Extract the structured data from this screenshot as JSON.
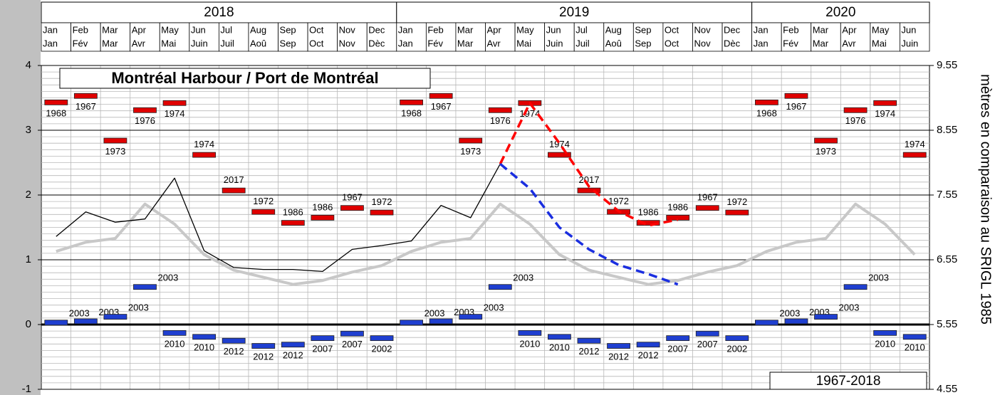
{
  "chart_data": {
    "type": "line",
    "title": "Montréal Harbour / Port de Montréal",
    "y2_label": "mètres en comparaison au SRIGL 1985",
    "period_label": "1967-2018",
    "years": [
      "2018",
      "2019",
      "2020"
    ],
    "categories": [
      "Jan",
      "Feb",
      "Mar",
      "Apr",
      "May",
      "Jun",
      "Jul",
      "Aug",
      "Sep",
      "Oct",
      "Nov",
      "Dec",
      "Jan",
      "Feb",
      "Mar",
      "Apr",
      "May",
      "Jun",
      "Jul",
      "Aug",
      "Sep",
      "Oct",
      "Nov",
      "Dec",
      "Jan",
      "Feb",
      "Mar",
      "Apr",
      "May",
      "Jun"
    ],
    "categories_fr": [
      "Jan",
      "Fév",
      "Mar",
      "Avr",
      "Mai",
      "Juin",
      "Juil",
      "Aoû",
      "Sep",
      "Oct",
      "Nov",
      "Dèc",
      "Jan",
      "Fév",
      "Mar",
      "Avr",
      "Mai",
      "Juin",
      "Juil",
      "Aoû",
      "Sep",
      "Oct",
      "Nov",
      "Dèc",
      "Jan",
      "Fév",
      "Mar",
      "Avr",
      "Mai",
      "Juin"
    ],
    "ylim": [
      -1,
      4
    ],
    "yticks": [
      -1,
      0,
      1,
      2,
      3,
      4
    ],
    "y2lim": [
      4.55,
      9.55
    ],
    "y2ticks": [
      4.55,
      5.55,
      6.55,
      7.55,
      8.55,
      9.55
    ],
    "grid": true,
    "series": [
      {
        "style": "marker",
        "color": "#e00000",
        "values": [
          3.43,
          3.53,
          2.84,
          3.31,
          3.42,
          2.62,
          2.07,
          1.74,
          1.57,
          1.65,
          1.8,
          1.73,
          3.43,
          3.53,
          2.84,
          3.31,
          3.42,
          2.62,
          2.07,
          1.74,
          1.57,
          1.65,
          1.8,
          1.73,
          3.43,
          3.53,
          2.84,
          3.31,
          3.42,
          2.62
        ],
        "record_years": [
          "1968",
          "1967",
          "1973",
          "1976",
          "1974",
          "1974",
          "2017",
          "1972",
          "1986",
          "1986",
          "1967",
          "1972",
          "1968",
          "1967",
          "1973",
          "1976",
          "1974",
          "1974",
          "2017",
          "1972",
          "1986",
          "1986",
          "1967",
          "1972",
          "1968",
          "1967",
          "1973",
          "1976",
          "1974",
          "1974"
        ]
      },
      {
        "style": "marker",
        "color": "#1f3fd0",
        "values": [
          0.03,
          0.05,
          0.12,
          0.58,
          -0.13,
          -0.19,
          -0.25,
          -0.33,
          -0.31,
          -0.21,
          -0.14,
          -0.21,
          0.03,
          0.05,
          0.12,
          0.58,
          -0.13,
          -0.19,
          -0.25,
          -0.33,
          -0.31,
          -0.21,
          -0.14,
          -0.21,
          0.03,
          0.05,
          0.12,
          0.58,
          -0.13,
          -0.19
        ],
        "record_years": [
          "2003",
          "2003",
          "2003",
          "2003",
          "2010",
          "2010",
          "2012",
          "2012",
          "2012",
          "2007",
          "2007",
          "2002",
          "2003",
          "2003",
          "2003",
          "2003",
          "2010",
          "2010",
          "2012",
          "2012",
          "2012",
          "2007",
          "2007",
          "2002",
          "2003",
          "2003",
          "2003",
          "2003",
          "2010",
          "2010"
        ]
      },
      {
        "style": "line",
        "color": "#c8c8c8",
        "width": 4,
        "values": [
          1.13,
          1.27,
          1.33,
          1.86,
          1.55,
          1.08,
          0.84,
          0.73,
          0.62,
          0.68,
          0.81,
          0.91,
          1.13,
          1.27,
          1.33,
          1.86,
          1.55,
          1.08,
          0.84,
          0.73,
          0.62,
          0.68,
          0.81,
          0.91,
          1.13,
          1.27,
          1.33,
          1.86,
          1.55,
          1.08
        ]
      },
      {
        "style": "line",
        "color": "#000000",
        "width": 1.3,
        "values": [
          1.36,
          1.74,
          1.58,
          1.63,
          2.26,
          1.14,
          0.88,
          0.85,
          0.85,
          0.82,
          1.16,
          1.22,
          1.29,
          1.84,
          1.65,
          2.48,
          null,
          null,
          null,
          null,
          null,
          null,
          null,
          null,
          null,
          null,
          null,
          null,
          null,
          null
        ]
      },
      {
        "style": "dashed",
        "color": "#ff0000",
        "width": 3.5,
        "values": [
          null,
          null,
          null,
          null,
          null,
          null,
          null,
          null,
          null,
          null,
          null,
          null,
          null,
          null,
          null,
          2.48,
          3.42,
          2.8,
          2.13,
          1.75,
          1.53,
          1.62,
          null,
          null,
          null,
          null,
          null,
          null,
          null,
          null
        ]
      },
      {
        "style": "dashed",
        "color": "#1a2ee0",
        "width": 3.5,
        "values": [
          null,
          null,
          null,
          null,
          null,
          null,
          null,
          null,
          null,
          null,
          null,
          null,
          null,
          null,
          null,
          2.48,
          2.1,
          1.5,
          1.16,
          0.92,
          0.78,
          0.62,
          null,
          null,
          null,
          null,
          null,
          null,
          null,
          null
        ]
      }
    ]
  }
}
